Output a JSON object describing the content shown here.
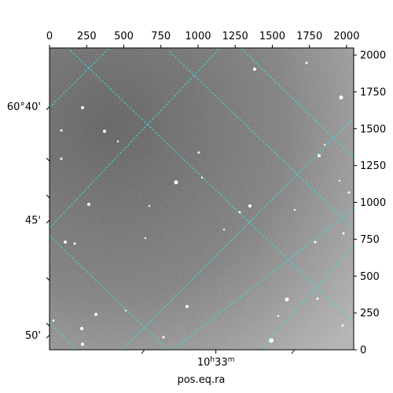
{
  "chart_data": {
    "type": "image",
    "xlabel": "pos.eq.ra",
    "ylabel": "",
    "xlim": [
      0,
      2048
    ],
    "ylim": [
      0,
      2048
    ],
    "pixel_axis_top": {
      "ticks": [
        0,
        250,
        500,
        750,
        1000,
        1250,
        1500,
        1750,
        2000
      ],
      "labels": [
        "0",
        "250",
        "500",
        "750",
        "1000",
        "1250",
        "1500",
        "1750",
        "2000"
      ]
    },
    "pixel_axis_right": {
      "ticks": [
        0,
        250,
        500,
        750,
        1000,
        1250,
        1500,
        1750,
        2000
      ],
      "labels": [
        "0",
        "250",
        "500",
        "750",
        "1000",
        "1250",
        "1500",
        "1750",
        "2000"
      ]
    },
    "dec_axis_left": {
      "labels": [
        {
          "text": "60°40'",
          "y": 1650
        },
        {
          "text": "45'",
          "y": 880
        },
        {
          "text": "50'",
          "y": 100
        }
      ]
    },
    "ra_axis_bottom": {
      "labels": [
        {
          "base": "10",
          "unit_h": "h",
          "min": "33",
          "unit_m": "m",
          "x": 1120
        }
      ]
    },
    "grid": true,
    "grid_color": "#3fd8d8",
    "image_style": "grayscale sky image with scattered stars"
  }
}
